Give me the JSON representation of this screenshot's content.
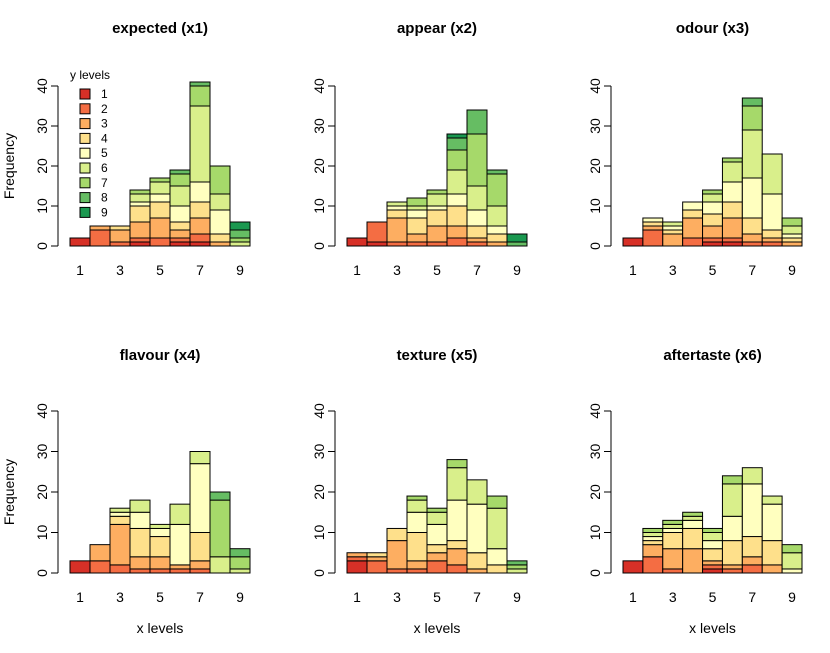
{
  "figure": {
    "xlabel": "x levels",
    "ylabel": "Frequency",
    "legend": {
      "title": "y levels",
      "placement": "top-left of first panel",
      "labels": [
        "1",
        "2",
        "3",
        "4",
        "5",
        "6",
        "7",
        "8",
        "9"
      ]
    }
  },
  "colors": [
    "#d73027",
    "#f46d43",
    "#fdae61",
    "#fee08b",
    "#ffffbf",
    "#d9ef8b",
    "#a6d96a",
    "#66bd63",
    "#1a9850"
  ],
  "chart_data": [
    {
      "type": "bar",
      "stacked": true,
      "title": "expected (x1)",
      "categories": [
        1,
        2,
        3,
        4,
        5,
        6,
        7,
        8,
        9
      ],
      "x_ticks": [
        1,
        3,
        5,
        7,
        9
      ],
      "ylim": [
        0,
        40
      ],
      "y_ticks": [
        0,
        10,
        20,
        30,
        40
      ],
      "stacks": [
        [
          2
        ],
        [
          0,
          4,
          1
        ],
        [
          0,
          1,
          3,
          1
        ],
        [
          1,
          1,
          4,
          4,
          1,
          2,
          1
        ],
        [
          0,
          2,
          5,
          4,
          2,
          3,
          1
        ],
        [
          1,
          1,
          2,
          2,
          4,
          5,
          3,
          1
        ],
        [
          1,
          2,
          4,
          4,
          5,
          19,
          5,
          1
        ],
        [
          0,
          0,
          1,
          2,
          6,
          4,
          7
        ],
        [
          0,
          0,
          0,
          0,
          0,
          1,
          1,
          2,
          2
        ]
      ]
    },
    {
      "type": "bar",
      "stacked": true,
      "title": "appear (x2)",
      "categories": [
        1,
        2,
        3,
        4,
        5,
        6,
        7,
        8,
        9
      ],
      "x_ticks": [
        1,
        3,
        5,
        7,
        9
      ],
      "ylim": [
        0,
        40
      ],
      "y_ticks": [
        0,
        10,
        20,
        30,
        40
      ],
      "stacks": [
        [
          2
        ],
        [
          1,
          5
        ],
        [
          0,
          1,
          6,
          2,
          1,
          1
        ],
        [
          0,
          1,
          2,
          4,
          2,
          1,
          2
        ],
        [
          0,
          1,
          4,
          4,
          1,
          3,
          1
        ],
        [
          0,
          2,
          3,
          5,
          3,
          6,
          5,
          3,
          1
        ],
        [
          0,
          1,
          1,
          3,
          4,
          6,
          13,
          6
        ],
        [
          0,
          0,
          1,
          2,
          2,
          5,
          8,
          1
        ],
        [
          0,
          0,
          0,
          0,
          0,
          0,
          0,
          1,
          2
        ]
      ]
    },
    {
      "type": "bar",
      "stacked": true,
      "title": "odour (x3)",
      "categories": [
        1,
        2,
        3,
        4,
        5,
        6,
        7,
        8,
        9
      ],
      "x_ticks": [
        1,
        3,
        5,
        7,
        9
      ],
      "ylim": [
        0,
        40
      ],
      "y_ticks": [
        0,
        10,
        20,
        30,
        40
      ],
      "stacks": [
        [
          2
        ],
        [
          0,
          4,
          1,
          1,
          1
        ],
        [
          0,
          0,
          3,
          1,
          1,
          1
        ],
        [
          0,
          2,
          5,
          2,
          2
        ],
        [
          1,
          1,
          3,
          3,
          3,
          2,
          1
        ],
        [
          1,
          1,
          5,
          4,
          5,
          5,
          1
        ],
        [
          0,
          1,
          2,
          4,
          10,
          12,
          6,
          2
        ],
        [
          0,
          1,
          1,
          2,
          9,
          10
        ],
        [
          0,
          0,
          1,
          1,
          1,
          2,
          2
        ]
      ]
    },
    {
      "type": "bar",
      "stacked": true,
      "title": "flavour (x4)",
      "categories": [
        1,
        2,
        3,
        4,
        5,
        6,
        7,
        8,
        9
      ],
      "x_ticks": [
        1,
        3,
        5,
        7,
        9
      ],
      "ylim": [
        0,
        40
      ],
      "y_ticks": [
        0,
        10,
        20,
        30,
        40
      ],
      "stacks": [
        [
          3
        ],
        [
          0,
          3,
          4
        ],
        [
          0,
          2,
          10,
          2,
          1,
          1
        ],
        [
          0,
          1,
          3,
          7,
          4,
          3
        ],
        [
          0,
          1,
          3,
          5,
          2,
          1
        ],
        [
          0,
          1,
          1,
          0,
          10,
          5
        ],
        [
          0,
          1,
          2,
          7,
          17,
          3
        ],
        [
          0,
          0,
          0,
          0,
          0,
          4,
          14,
          2
        ],
        [
          0,
          0,
          0,
          0,
          0,
          1,
          3,
          2
        ]
      ]
    },
    {
      "type": "bar",
      "stacked": true,
      "title": "texture (x5)",
      "categories": [
        1,
        2,
        3,
        4,
        5,
        6,
        7,
        8,
        9
      ],
      "x_ticks": [
        1,
        3,
        5,
        7,
        9
      ],
      "ylim": [
        0,
        40
      ],
      "y_ticks": [
        0,
        10,
        20,
        30,
        40
      ],
      "stacks": [
        [
          3,
          1,
          1
        ],
        [
          0,
          3,
          1,
          1
        ],
        [
          0,
          1,
          7,
          3
        ],
        [
          0,
          1,
          2,
          7,
          5,
          3,
          1
        ],
        [
          0,
          3,
          2,
          2,
          5,
          3,
          1
        ],
        [
          0,
          2,
          4,
          2,
          10,
          8,
          2
        ],
        [
          0,
          0,
          1,
          4,
          12,
          6
        ],
        [
          0,
          0,
          0,
          2,
          4,
          10,
          3
        ],
        [
          0,
          0,
          0,
          0,
          0,
          1,
          1,
          1
        ]
      ]
    },
    {
      "type": "bar",
      "stacked": true,
      "title": "aftertaste (x6)",
      "categories": [
        1,
        2,
        3,
        4,
        5,
        6,
        7,
        8,
        9
      ],
      "x_ticks": [
        1,
        3,
        5,
        7,
        9
      ],
      "ylim": [
        0,
        40
      ],
      "y_ticks": [
        0,
        10,
        20,
        30,
        40
      ],
      "stacks": [
        [
          3
        ],
        [
          0,
          4,
          3,
          1,
          1,
          1,
          1
        ],
        [
          0,
          1,
          5,
          4,
          1,
          1,
          1
        ],
        [
          0,
          0,
          6,
          5,
          2,
          1,
          1
        ],
        [
          1,
          1,
          1,
          3,
          2,
          2,
          1
        ],
        [
          0,
          1,
          1,
          6,
          6,
          8,
          2
        ],
        [
          0,
          2,
          2,
          5,
          13,
          4
        ],
        [
          0,
          0,
          2,
          6,
          9,
          2
        ],
        [
          0,
          0,
          0,
          0,
          1,
          4,
          2
        ]
      ]
    }
  ]
}
